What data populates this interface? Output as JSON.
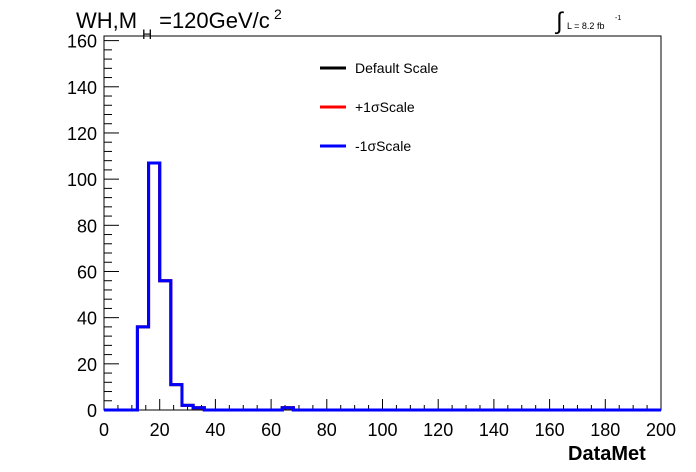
{
  "header": {
    "title_main": "WH,M",
    "title_sub": "H",
    "title_rest": "=120GeV/c",
    "title_sup": "2",
    "lumi_integral": "∫",
    "lumi_text": "L = 8.2 fb",
    "lumi_sup": "-1"
  },
  "legend": {
    "entries": [
      {
        "label": "Default Scale",
        "color": "#000000"
      },
      {
        "label": "+1σScale",
        "color": "#ff0000"
      },
      {
        "label": "-1σScale",
        "color": "#0000ff"
      }
    ]
  },
  "chart_data": {
    "type": "line",
    "style": "step-histogram",
    "xlabel": "DataMet",
    "ylabel": "",
    "xlim": [
      0,
      200
    ],
    "ylim": [
      0,
      162
    ],
    "x_ticks": [
      "0",
      "20",
      "40",
      "60",
      "80",
      "100",
      "120",
      "140",
      "160",
      "180",
      "200"
    ],
    "y_ticks": [
      "0",
      "20",
      "40",
      "60",
      "80",
      "100",
      "120",
      "140",
      "160"
    ],
    "x_tick_values": [
      0,
      20,
      40,
      60,
      80,
      100,
      120,
      140,
      160,
      180,
      200
    ],
    "y_tick_values": [
      0,
      20,
      40,
      60,
      80,
      100,
      120,
      140,
      160
    ],
    "bin_edges": [
      0,
      4,
      8,
      12,
      16,
      20,
      24,
      28,
      32,
      36,
      40,
      44,
      48,
      52,
      56,
      60,
      64,
      68,
      72,
      76,
      80,
      84,
      88,
      92,
      96,
      100,
      104,
      108,
      112,
      116,
      120,
      124,
      128,
      132,
      136,
      140,
      144,
      148,
      152,
      156,
      160,
      164,
      168,
      172,
      176,
      180,
      184,
      188,
      192,
      196,
      200
    ],
    "series": [
      {
        "name": "Default Scale",
        "color": "#000000",
        "values": [
          0,
          0,
          0,
          36,
          107,
          56,
          11,
          2,
          1,
          0,
          0,
          0,
          0,
          0,
          0,
          0,
          1,
          0,
          0,
          0,
          0,
          0,
          0,
          0,
          0,
          0,
          0,
          0,
          0,
          0,
          0,
          0,
          0,
          0,
          0,
          0,
          0,
          0,
          0,
          0,
          0,
          0,
          0,
          0,
          0,
          0,
          0,
          0,
          0,
          0
        ]
      },
      {
        "name": "+1σScale",
        "color": "#ff0000",
        "values": [
          0,
          0,
          0,
          36,
          107,
          56,
          11,
          2,
          1,
          0,
          0,
          0,
          0,
          0,
          0,
          0,
          1,
          0,
          0,
          0,
          0,
          0,
          0,
          0,
          0,
          0,
          0,
          0,
          0,
          0,
          0,
          0,
          0,
          0,
          0,
          0,
          0,
          0,
          0,
          0,
          0,
          0,
          0,
          0,
          0,
          0,
          0,
          0,
          0,
          0
        ]
      },
      {
        "name": "-1σScale",
        "color": "#0000ff",
        "values": [
          0,
          0,
          0,
          36,
          107,
          56,
          11,
          2,
          1,
          0,
          0,
          0,
          0,
          0,
          0,
          0,
          1,
          0,
          0,
          0,
          0,
          0,
          0,
          0,
          0,
          0,
          0,
          0,
          0,
          0,
          0,
          0,
          0,
          0,
          0,
          0,
          0,
          0,
          0,
          0,
          0,
          0,
          0,
          0,
          0,
          0,
          0,
          0,
          0,
          0
        ]
      }
    ],
    "grid": false,
    "legend_position": "top-center"
  }
}
